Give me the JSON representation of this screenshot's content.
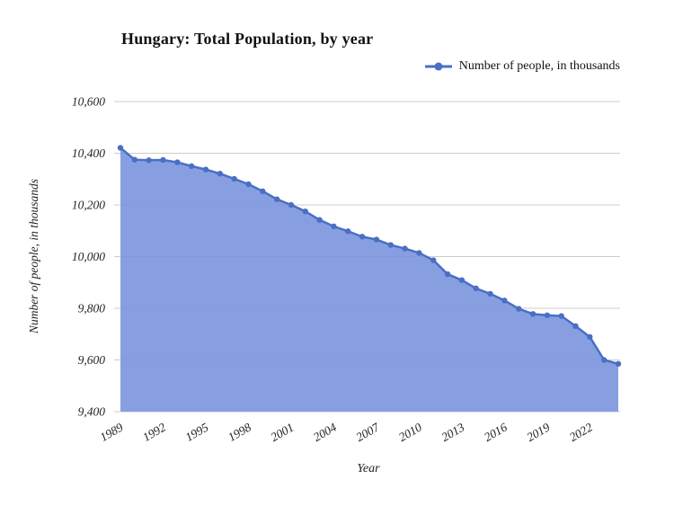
{
  "title": "Hungary: Total Population, by year",
  "legend": {
    "label": "Number of people, in thousands"
  },
  "axes": {
    "y_label": "Number of people, in thousands",
    "x_label": "Year"
  },
  "chart_data": {
    "type": "area",
    "title": "Hungary: Total Population, by year",
    "xlabel": "Year",
    "ylabel": "Number of people, in thousands",
    "legend_position": "top-right",
    "grid": true,
    "ylim": [
      9400,
      10600
    ],
    "yticks": [
      9400,
      9600,
      9800,
      10000,
      10200,
      10400,
      10600
    ],
    "ytick_labels": [
      "9,400",
      "9,600",
      "9,800",
      "10,000",
      "10,200",
      "10,400",
      "10,600"
    ],
    "xticks": [
      1989,
      1992,
      1995,
      1998,
      2001,
      2004,
      2007,
      2010,
      2013,
      2016,
      2019,
      2022
    ],
    "x": [
      1989,
      1990,
      1991,
      1992,
      1993,
      1994,
      1995,
      1996,
      1997,
      1998,
      1999,
      2000,
      2001,
      2002,
      2003,
      2004,
      2005,
      2006,
      2007,
      2008,
      2009,
      2010,
      2011,
      2012,
      2013,
      2014,
      2015,
      2016,
      2017,
      2018,
      2019,
      2020,
      2021,
      2022,
      2023,
      2024
    ],
    "series": [
      {
        "name": "Number of people, in thousands",
        "values": [
          10421,
          10375,
          10373,
          10374,
          10365,
          10350,
          10337,
          10321,
          10301,
          10280,
          10253,
          10222,
          10200,
          10175,
          10142,
          10117,
          10098,
          10077,
          10066,
          10045,
          10031,
          10014,
          9986,
          9932,
          9909,
          9877,
          9856,
          9830,
          9798,
          9778,
          9773,
          9770,
          9731,
          9689,
          9600,
          9585
        ]
      }
    ],
    "colors": {
      "line": "#4a6fc4",
      "fill": "#7d97de",
      "grid": "#cccccc",
      "text": "#222222"
    }
  }
}
